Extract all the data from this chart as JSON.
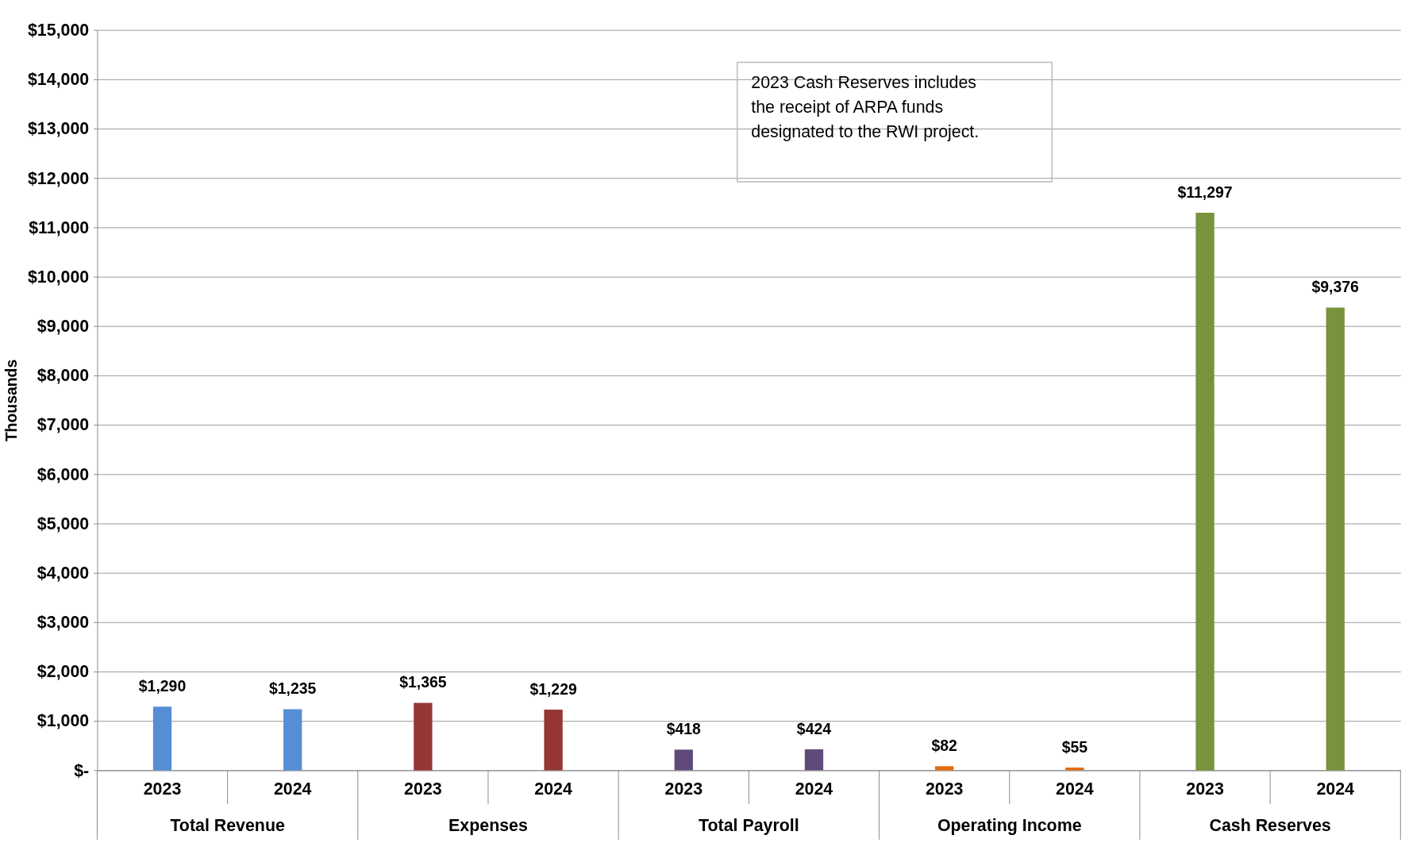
{
  "chart_data": {
    "type": "bar",
    "ylabel": "Thousands",
    "categories": [
      "2023",
      "2024",
      "2023",
      "2024",
      "2023",
      "2024",
      "2023",
      "2024",
      "2023",
      "2024"
    ],
    "values": [
      1290,
      1235,
      1365,
      1229,
      418,
      424,
      82,
      55,
      11297,
      9376
    ],
    "colors": [
      "#558ed5",
      "#558ed5",
      "#953735",
      "#953735",
      "#604a7b",
      "#604a7b",
      "#e46c0a",
      "#e46c0a",
      "#77933c",
      "#77933c"
    ],
    "value_labels": [
      "$1,290",
      "$1,235",
      "$1,365",
      "$1,229",
      "$418",
      "$424",
      "$82",
      "$55",
      "$11,297",
      "$9,376"
    ],
    "ylim": [
      0,
      15000
    ],
    "yticks": [
      {
        "value": 0,
        "label": "$-"
      },
      {
        "value": 1000,
        "label": "$1,000"
      },
      {
        "value": 2000,
        "label": "$2,000"
      },
      {
        "value": 3000,
        "label": "$3,000"
      },
      {
        "value": 4000,
        "label": "$4,000"
      },
      {
        "value": 5000,
        "label": "$5,000"
      },
      {
        "value": 6000,
        "label": "$6,000"
      },
      {
        "value": 7000,
        "label": "$7,000"
      },
      {
        "value": 8000,
        "label": "$8,000"
      },
      {
        "value": 9000,
        "label": "$9,000"
      },
      {
        "value": 10000,
        "label": "$10,000"
      },
      {
        "value": 11000,
        "label": "$11,000"
      },
      {
        "value": 12000,
        "label": "$12,000"
      },
      {
        "value": 13000,
        "label": "$13,000"
      },
      {
        "value": 14000,
        "label": "$14,000"
      },
      {
        "value": 15000,
        "label": "$15,000"
      }
    ],
    "grid": "y",
    "annotations": [
      "Total Revenue",
      "Expenses",
      "Total Payroll",
      "Operating Income",
      "Cash Reserves",
      "2023 Cash Reserves includes\nthe receipt of ARPA funds\ndesignated to the RWI project."
    ]
  }
}
